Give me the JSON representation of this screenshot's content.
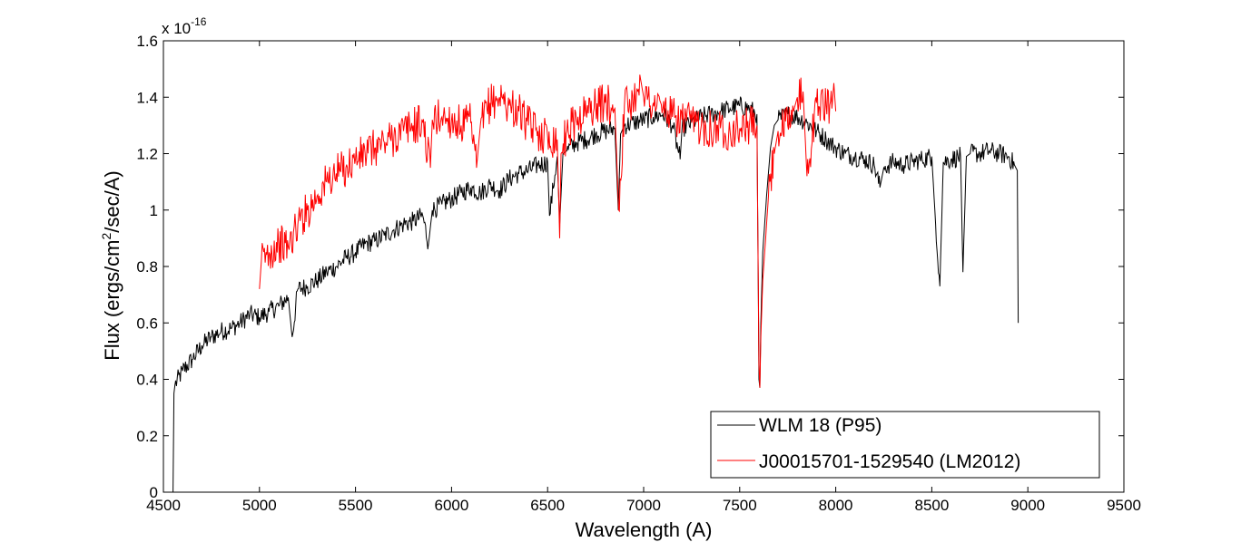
{
  "chart_data": {
    "type": "line",
    "title": "",
    "xlabel": "Wavelength (A)",
    "ylabel_prefix": "Flux (ergs/cm",
    "ylabel_sup": "2",
    "ylabel_suffix": "/sec/A)",
    "exponent_base": "x 10",
    "exponent_power": "-16",
    "xlim": [
      4500,
      9500
    ],
    "ylim": [
      0,
      1.6
    ],
    "grid": false,
    "legend_position": "bottom-right",
    "x_ticks": [
      4500,
      5000,
      5500,
      6000,
      6500,
      7000,
      7500,
      8000,
      8500,
      9000,
      9500
    ],
    "x_tick_labels": [
      "4500",
      "5000",
      "5500",
      "6000",
      "6500",
      "7000",
      "7500",
      "8000",
      "8500",
      "9000",
      "9500"
    ],
    "y_ticks": [
      0,
      0.2,
      0.4,
      0.6,
      0.8,
      1.0,
      1.2,
      1.4,
      1.6
    ],
    "y_tick_labels": [
      "0",
      "0.2",
      "0.4",
      "0.6",
      "0.8",
      "1",
      "1.2",
      "1.4",
      "1.6"
    ],
    "series": [
      {
        "name": "WLM 18 (P95)",
        "color": "#000000",
        "x": [
          4550,
          4555,
          4560,
          4600,
          4650,
          4700,
          4750,
          4800,
          4850,
          4900,
          4950,
          5000,
          5050,
          5100,
          5150,
          5170,
          5200,
          5250,
          5300,
          5350,
          5400,
          5450,
          5500,
          5550,
          5600,
          5650,
          5700,
          5750,
          5800,
          5850,
          5880,
          5900,
          5950,
          6000,
          6050,
          6100,
          6150,
          6200,
          6250,
          6300,
          6350,
          6400,
          6450,
          6500,
          6510,
          6550,
          6563,
          6580,
          6600,
          6650,
          6700,
          6750,
          6800,
          6850,
          6868,
          6880,
          6900,
          6950,
          7000,
          7050,
          7100,
          7150,
          7190,
          7200,
          7250,
          7300,
          7350,
          7400,
          7450,
          7500,
          7550,
          7590,
          7600,
          7605,
          7610,
          7620,
          7640,
          7660,
          7680,
          7700,
          7750,
          7800,
          7850,
          7900,
          7950,
          8000,
          8050,
          8100,
          8150,
          8200,
          8230,
          8250,
          8300,
          8350,
          8400,
          8450,
          8500,
          8520,
          8542,
          8560,
          8600,
          8650,
          8662,
          8680,
          8700,
          8750,
          8800,
          8850,
          8900,
          8930,
          8945,
          8950
        ],
        "y": [
          0.0,
          0.35,
          0.38,
          0.43,
          0.47,
          0.52,
          0.55,
          0.57,
          0.58,
          0.6,
          0.63,
          0.62,
          0.64,
          0.66,
          0.69,
          0.55,
          0.72,
          0.73,
          0.75,
          0.78,
          0.8,
          0.83,
          0.85,
          0.88,
          0.89,
          0.91,
          0.93,
          0.95,
          0.96,
          0.98,
          0.88,
          1.0,
          1.02,
          1.04,
          1.06,
          1.08,
          1.06,
          1.09,
          1.07,
          1.11,
          1.13,
          1.14,
          1.16,
          1.17,
          0.98,
          1.19,
          0.95,
          1.2,
          1.21,
          1.24,
          1.25,
          1.27,
          1.28,
          1.29,
          1.0,
          1.27,
          1.3,
          1.31,
          1.32,
          1.33,
          1.34,
          1.3,
          1.18,
          1.29,
          1.31,
          1.33,
          1.34,
          1.35,
          1.36,
          1.37,
          1.36,
          1.34,
          0.4,
          0.37,
          0.6,
          0.85,
          1.05,
          1.22,
          1.3,
          1.32,
          1.34,
          1.33,
          1.31,
          1.28,
          1.25,
          1.22,
          1.2,
          1.19,
          1.18,
          1.16,
          1.08,
          1.15,
          1.17,
          1.16,
          1.17,
          1.18,
          1.19,
          0.95,
          0.73,
          1.17,
          1.18,
          1.19,
          0.78,
          1.19,
          1.2,
          1.2,
          1.21,
          1.2,
          1.19,
          1.16,
          1.14,
          0.6
        ]
      },
      {
        "name": "J00015701-1529540 (LM2012)",
        "color": "#ff0000",
        "x": [
          5000,
          5010,
          5050,
          5100,
          5150,
          5200,
          5250,
          5300,
          5350,
          5400,
          5450,
          5500,
          5550,
          5600,
          5650,
          5700,
          5750,
          5800,
          5850,
          5890,
          5900,
          5950,
          6000,
          6050,
          6100,
          6130,
          6150,
          6200,
          6250,
          6300,
          6350,
          6400,
          6450,
          6500,
          6550,
          6563,
          6570,
          6600,
          6650,
          6700,
          6750,
          6800,
          6850,
          6870,
          6900,
          6950,
          6980,
          7000,
          7050,
          7100,
          7150,
          7200,
          7250,
          7300,
          7350,
          7400,
          7450,
          7500,
          7550,
          7590,
          7600,
          7605,
          7610,
          7620,
          7630,
          7650,
          7680,
          7700,
          7750,
          7780,
          7800,
          7830,
          7850,
          7900,
          7950,
          7980,
          7990,
          8000
        ],
        "y": [
          0.72,
          0.82,
          0.85,
          0.88,
          0.87,
          0.95,
          1.0,
          1.05,
          1.1,
          1.13,
          1.15,
          1.18,
          1.2,
          1.22,
          1.24,
          1.26,
          1.28,
          1.3,
          1.31,
          1.15,
          1.32,
          1.33,
          1.32,
          1.3,
          1.31,
          1.15,
          1.3,
          1.38,
          1.4,
          1.37,
          1.35,
          1.3,
          1.28,
          1.26,
          1.25,
          0.9,
          1.2,
          1.28,
          1.32,
          1.35,
          1.37,
          1.38,
          1.36,
          1.0,
          1.37,
          1.39,
          1.48,
          1.4,
          1.38,
          1.36,
          1.33,
          1.32,
          1.31,
          1.3,
          1.29,
          1.29,
          1.28,
          1.29,
          1.3,
          1.3,
          0.45,
          0.37,
          0.55,
          0.75,
          0.85,
          1.05,
          1.2,
          1.28,
          1.3,
          1.35,
          1.4,
          1.42,
          1.12,
          1.38,
          1.37,
          1.36,
          1.45,
          1.35
        ]
      }
    ]
  }
}
